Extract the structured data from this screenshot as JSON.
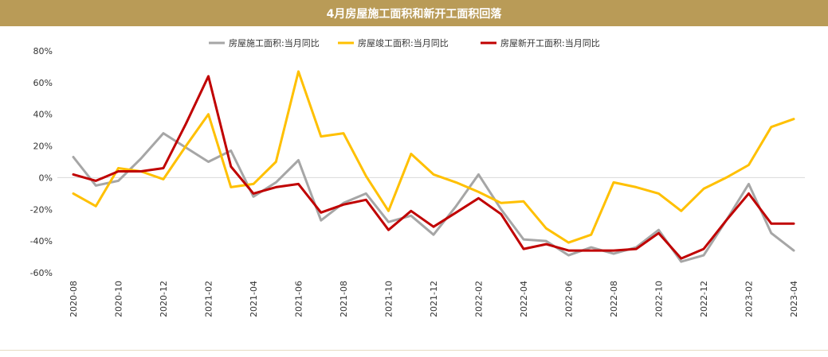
{
  "header": {
    "title": "4月房屋施工面积和新开工面积回落",
    "bar_color": "#b99b57"
  },
  "chart_data": {
    "type": "line",
    "title": "4月房屋施工面积和新开工面积回落",
    "xlabel": "",
    "ylabel": "",
    "ylim": [
      -60,
      80
    ],
    "yticks": [
      -60,
      -40,
      -20,
      0,
      20,
      40,
      60,
      80
    ],
    "ytick_suffix": "%",
    "ytick_labels": [
      "-60%",
      "-40%",
      "-20%",
      "0%",
      "20%",
      "40%",
      "60%",
      "80%"
    ],
    "grid": false,
    "zero_line": true,
    "legend_position": "top",
    "x": [
      "2020-08",
      "2020-09",
      "2020-10",
      "2020-11",
      "2020-12",
      "2021-01",
      "2021-02",
      "2021-03",
      "2021-04",
      "2021-05",
      "2021-06",
      "2021-07",
      "2021-08",
      "2021-09",
      "2021-10",
      "2021-11",
      "2021-12",
      "2022-01",
      "2022-02",
      "2022-03",
      "2022-04",
      "2022-05",
      "2022-06",
      "2022-07",
      "2022-08",
      "2022-09",
      "2022-10",
      "2022-11",
      "2022-12",
      "2023-01",
      "2023-02",
      "2023-03",
      "2023-04"
    ],
    "xtick_labels": [
      "2020-08",
      "2020-10",
      "2020-12",
      "2021-02",
      "2021-04",
      "2021-06",
      "2021-08",
      "2021-10",
      "2021-12",
      "2022-02",
      "2022-04",
      "2022-06",
      "2022-08",
      "2022-10",
      "2022-12",
      "2023-02",
      "2023-04"
    ],
    "series": [
      {
        "name": "房屋施工面积:当月同比",
        "color": "#a6a6a6",
        "values": [
          13,
          -5,
          -2,
          12,
          28,
          19,
          10,
          17,
          -12,
          -3,
          11,
          -27,
          -16,
          -10,
          -28,
          -24,
          -36,
          -18,
          2,
          -20,
          -39,
          -40,
          -49,
          -44,
          -48,
          -44,
          -33,
          -53,
          -49,
          -27,
          -4,
          -35,
          -46
        ]
      },
      {
        "name": "房屋竣工面积:当月同比",
        "color": "#ffc000",
        "values": [
          -10,
          -18,
          6,
          4,
          -1,
          20,
          40,
          -6,
          -4,
          10,
          67,
          26,
          28,
          1,
          -21,
          15,
          2,
          -3,
          -9,
          -16,
          -15,
          -32,
          -41,
          -36,
          -3,
          -6,
          -10,
          -21,
          -7,
          0,
          8,
          32,
          37
        ]
      },
      {
        "name": "房屋新开工面积:当月同比",
        "color": "#c00000",
        "values": [
          2,
          -2,
          4,
          4,
          6,
          34,
          64,
          7,
          -10,
          -6,
          -4,
          -22,
          -17,
          -14,
          -33,
          -21,
          -31,
          -22,
          -13,
          -23,
          -45,
          -42,
          -46,
          -46,
          -46,
          -45,
          -35,
          -51,
          -45,
          -27,
          -10,
          -29,
          -29
        ]
      }
    ]
  }
}
